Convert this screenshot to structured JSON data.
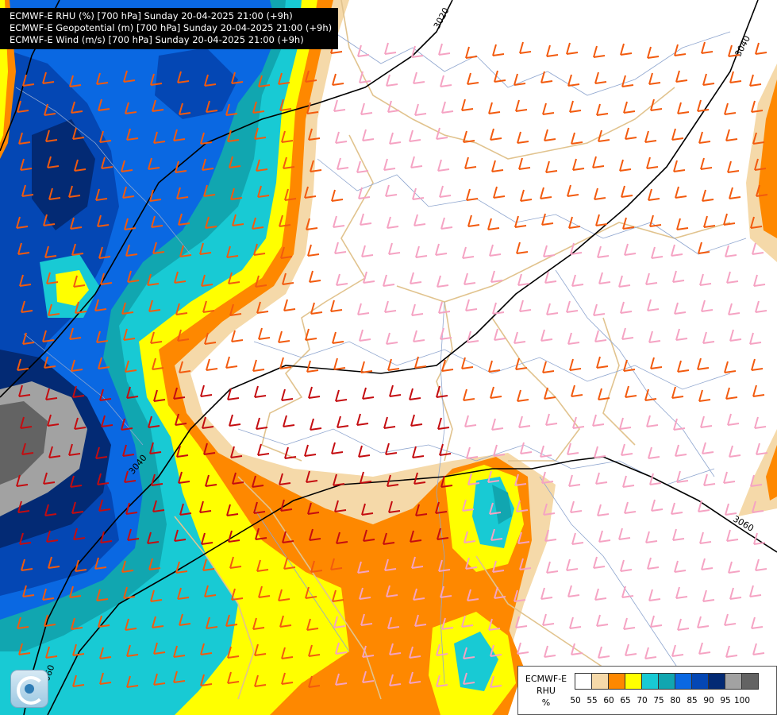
{
  "header": {
    "lines": [
      "ECMWF-E RHU (%) [700 hPa] Sunday 20-04-2025 21:00 (+9h)",
      "ECMWF-E Geopotential (m) [700 hPa] Sunday 20-04-2025 21:00 (+9h)",
      "ECMWF-E Wind (m/s) [700 hPa] Sunday 20-04-2025 21:00 (+9h)"
    ]
  },
  "map": {
    "contour_labels": [
      "3020",
      "3040",
      "3040",
      "3060",
      "3060"
    ],
    "colors": {
      "c50": "#ffffff",
      "c55": "#f5d9a9",
      "c60": "#fe8800",
      "c65": "#ffff00",
      "c70": "#18cad4",
      "c75": "#11a6b0",
      "c80": "#0a68e2",
      "c85": "#0447b4",
      "c90": "#032a74",
      "c95": "#a2a2a2",
      "c100": "#636363",
      "barb_light": "#f5a3c3",
      "barb_orange": "#f25a0e",
      "barb_red": "#c40c10"
    }
  },
  "legend": {
    "title_lines": [
      "ECMWF-E",
      "RHU",
      "%"
    ],
    "colors": [
      "#ffffff",
      "#f5d9a9",
      "#fe8800",
      "#ffff00",
      "#18cad4",
      "#11a6b0",
      "#0a68e2",
      "#0447b4",
      "#032a74",
      "#a2a2a2",
      "#636363"
    ],
    "ticks": [
      "50",
      "55",
      "60",
      "65",
      "70",
      "75",
      "80",
      "85",
      "90",
      "95",
      "100"
    ]
  }
}
